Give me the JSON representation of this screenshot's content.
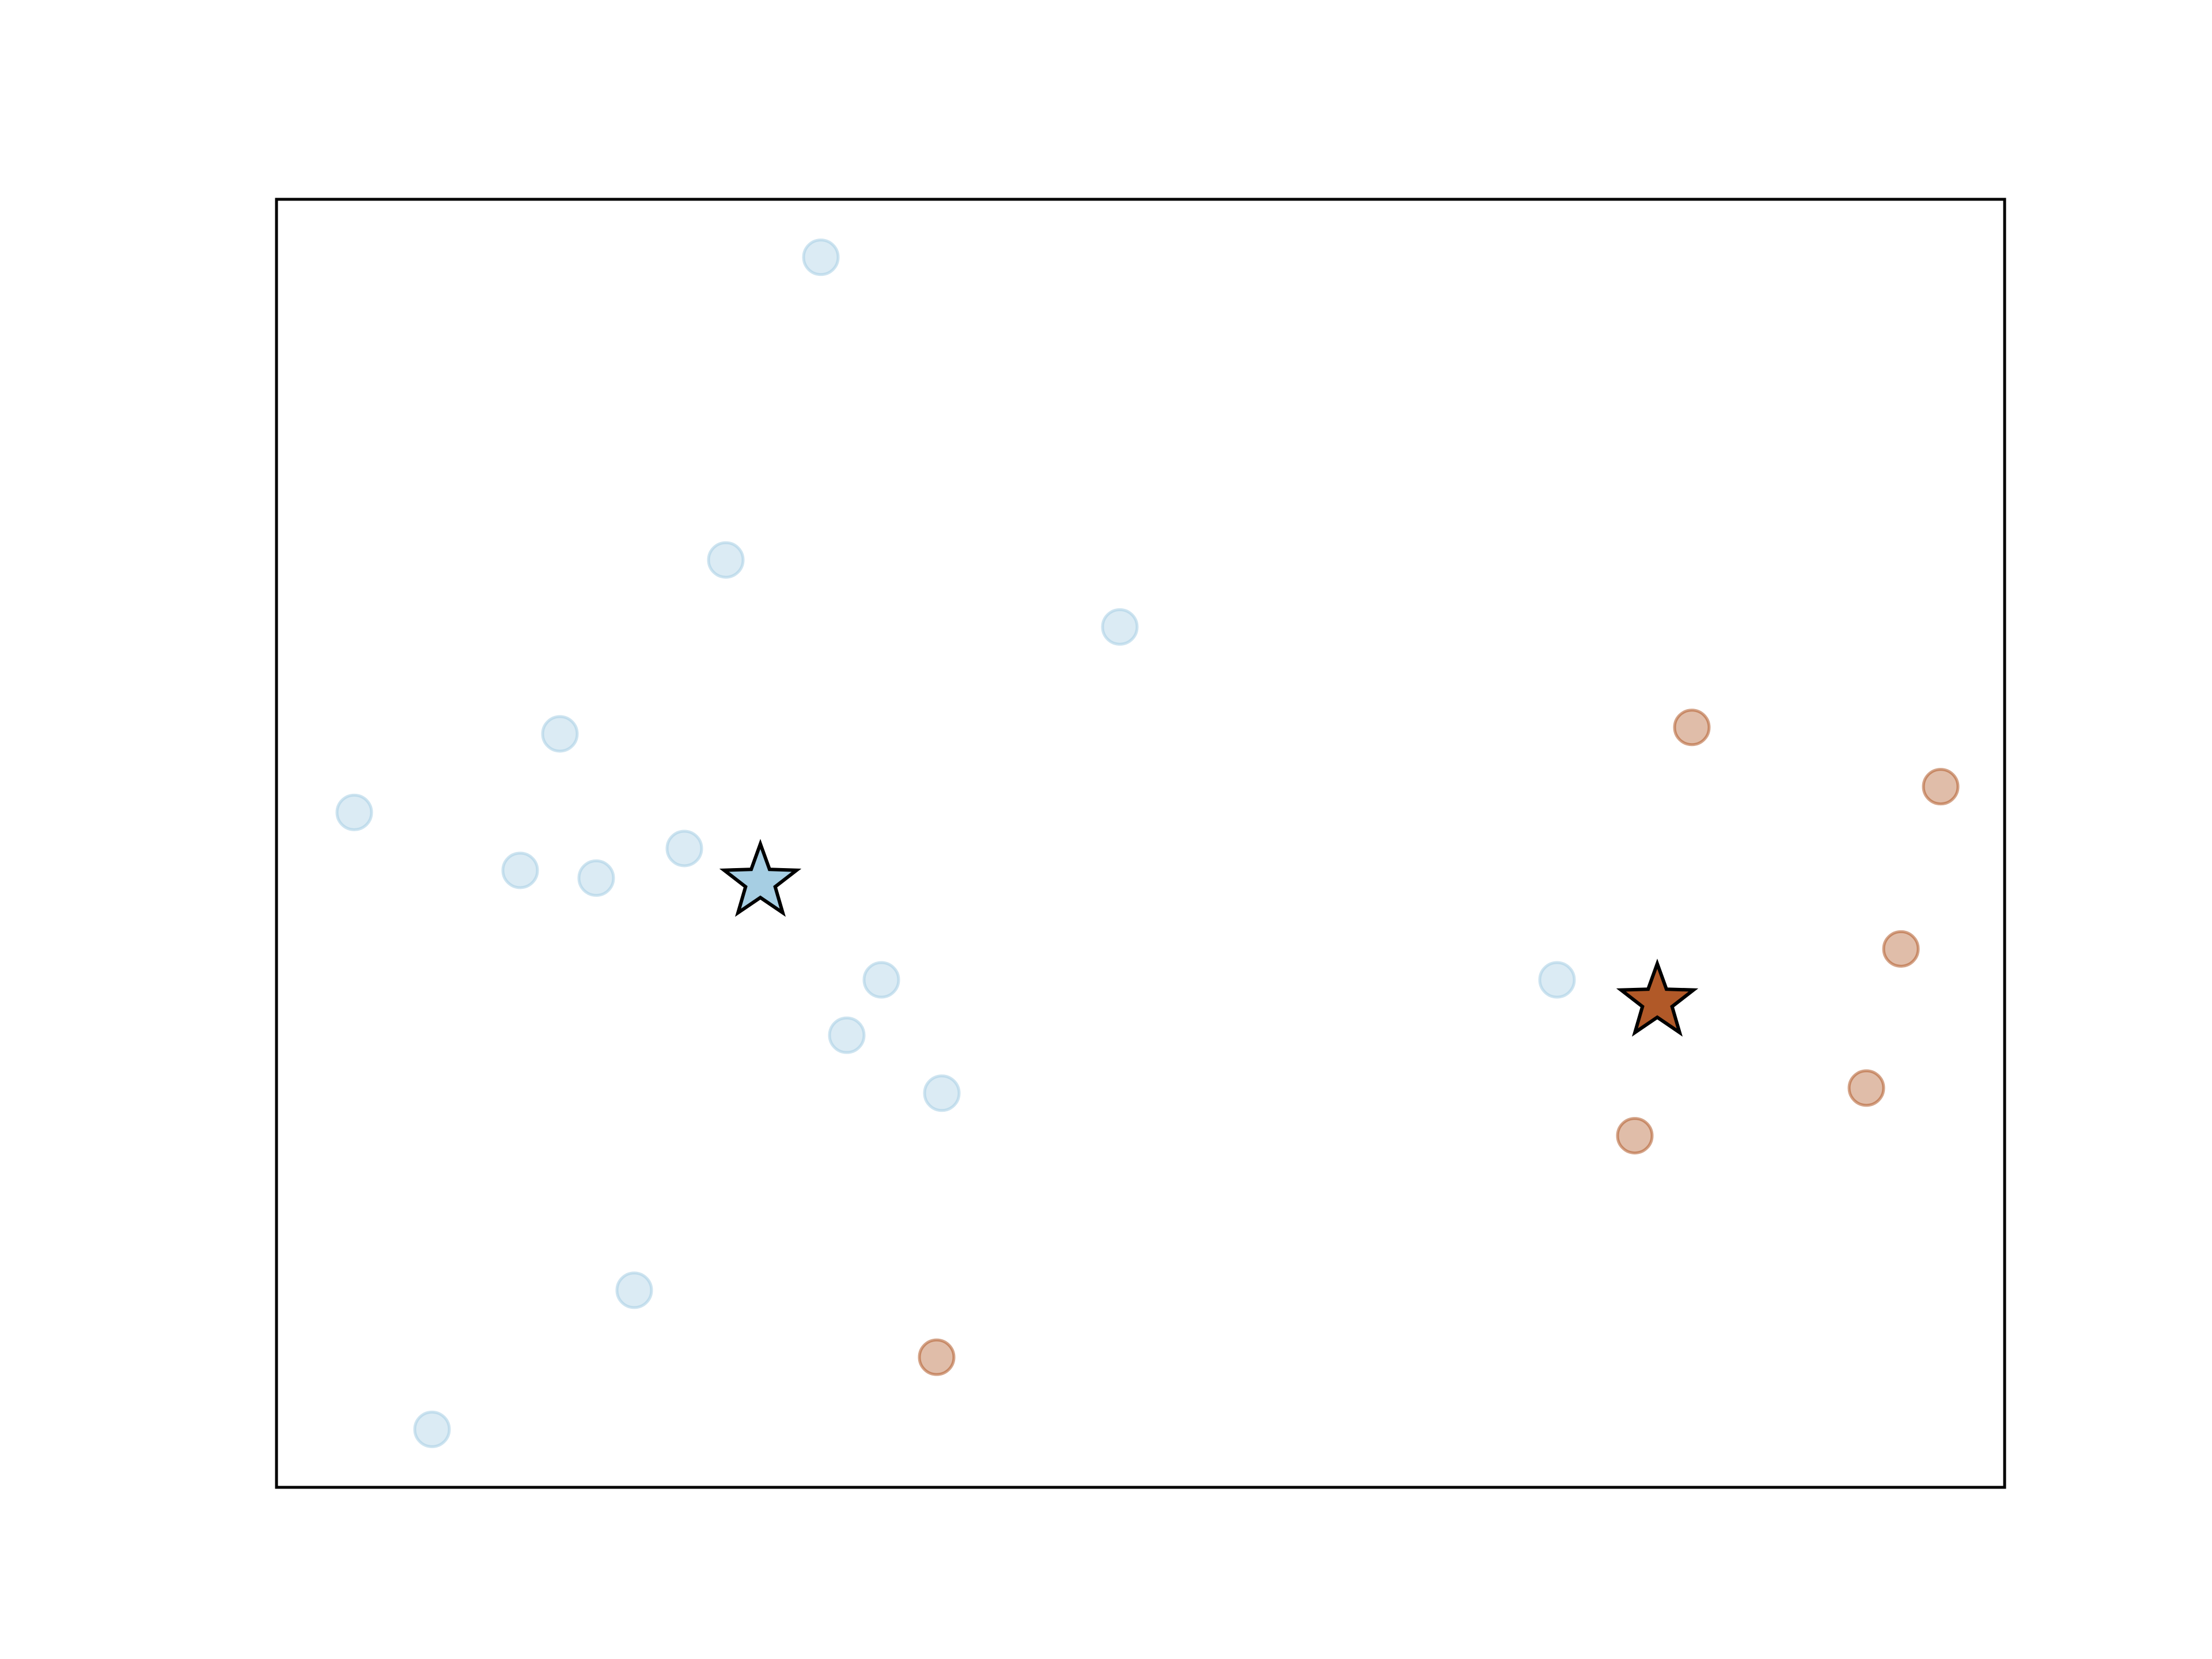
{
  "chart_data": {
    "type": "scatter",
    "title": "",
    "xlabel": "",
    "ylabel": "",
    "xlim": [
      0,
      100
    ],
    "ylim": [
      0,
      100
    ],
    "grid": false,
    "ticks": false,
    "legend": "none",
    "colors": {
      "cluster_0": "#a6cee3",
      "cluster_1": "#b15928",
      "axes_frame": "#000000"
    },
    "point_alpha": 0.4,
    "series": [
      {
        "cluster": 0,
        "points": [
          [
            31.5,
            95.5
          ],
          [
            26.0,
            72.0
          ],
          [
            48.8,
            66.8
          ],
          [
            16.4,
            58.5
          ],
          [
            4.5,
            52.4
          ],
          [
            23.6,
            49.6
          ],
          [
            18.5,
            47.3
          ],
          [
            14.1,
            47.9
          ],
          [
            35.0,
            39.4
          ],
          [
            33.0,
            35.1
          ],
          [
            38.5,
            30.6
          ],
          [
            74.1,
            39.4
          ],
          [
            20.7,
            15.3
          ],
          [
            9.0,
            4.5
          ]
        ],
        "center": [
          28.0,
          47.0
        ]
      },
      {
        "cluster": 1,
        "points": [
          [
            81.9,
            59.0
          ],
          [
            96.3,
            54.4
          ],
          [
            94.0,
            41.8
          ],
          [
            92.0,
            31.0
          ],
          [
            78.6,
            27.3
          ],
          [
            38.2,
            10.1
          ]
        ],
        "center": [
          79.9,
          37.7
        ]
      }
    ]
  }
}
